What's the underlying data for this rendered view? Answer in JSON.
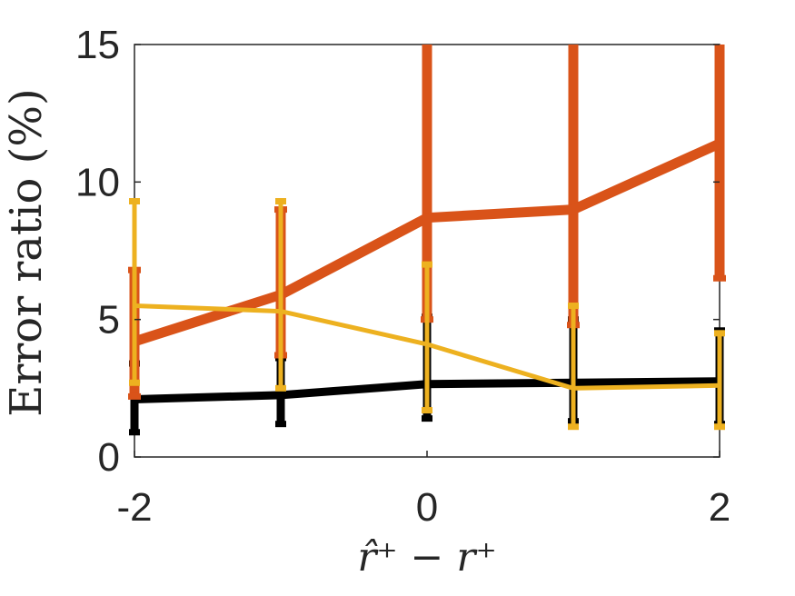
{
  "chart_data": {
    "type": "line",
    "title": "",
    "xlabel": "r̂⁺ − r⁺",
    "ylabel": "Error ratio (%)",
    "xlim": [
      -2,
      2
    ],
    "ylim": [
      0,
      15
    ],
    "xticks": [
      -2,
      0,
      2
    ],
    "yticks": [
      0,
      5,
      10,
      15
    ],
    "grid": false,
    "legend": "none",
    "series": [
      {
        "color": "#000000",
        "x": [
          -2,
          -1,
          0,
          1,
          2
        ],
        "values": [
          2.1,
          2.25,
          2.65,
          2.7,
          2.75
        ],
        "err_low": [
          0.9,
          1.2,
          1.4,
          1.3,
          1.2
        ],
        "err_high": [
          3.4,
          3.6,
          5.1,
          5.0,
          4.6
        ]
      },
      {
        "color": "#D95319",
        "x": [
          -2,
          -1,
          0,
          1,
          2
        ],
        "values": [
          4.2,
          5.9,
          8.7,
          9.0,
          11.4
        ],
        "err_low": [
          2.2,
          3.7,
          5.0,
          4.8,
          6.5
        ],
        "err_high": [
          6.8,
          9.0,
          15,
          15,
          15
        ]
      },
      {
        "color": "#EDB120",
        "x": [
          -2,
          -1,
          0,
          1,
          2
        ],
        "values": [
          5.5,
          5.3,
          4.1,
          2.5,
          2.6
        ],
        "err_low": [
          2.7,
          2.5,
          1.7,
          1.1,
          1.1
        ],
        "err_high": [
          9.3,
          9.3,
          7.0,
          5.5,
          4.5
        ]
      }
    ]
  }
}
